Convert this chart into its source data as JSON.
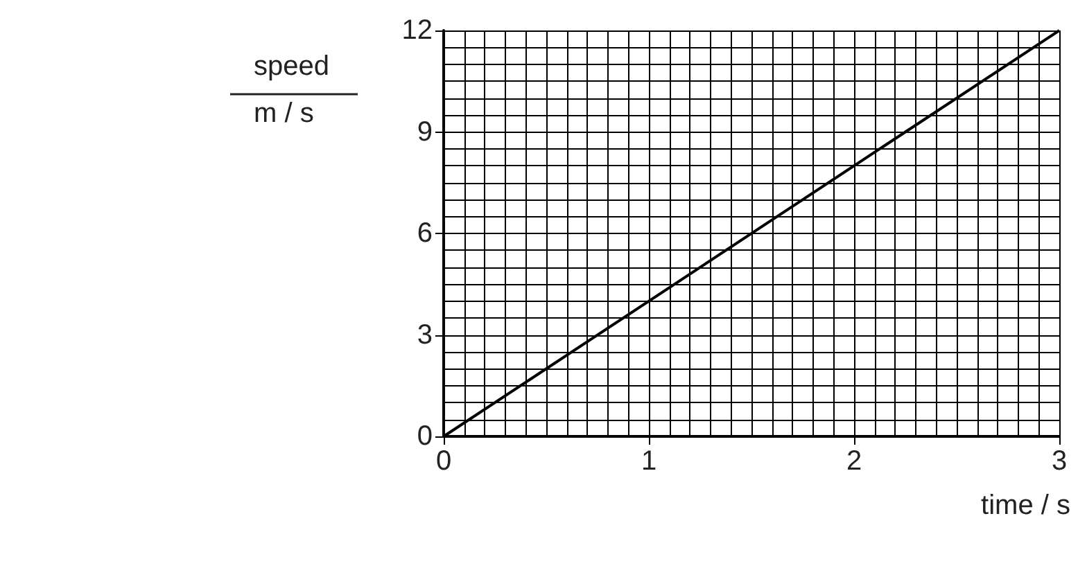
{
  "chart_data": {
    "type": "line",
    "xlabel": "time / s",
    "ylabel": "speed\nm / s",
    "x": [
      0,
      3
    ],
    "series": [
      {
        "color": "#000000",
        "values": [
          0,
          12
        ]
      }
    ],
    "xlim": [
      0,
      3
    ],
    "xticks": [
      0,
      1,
      2,
      3
    ],
    "ylim": [
      0,
      12
    ],
    "yticks": [
      0,
      3,
      6,
      9,
      12
    ],
    "grid": true,
    "marker": "none",
    "line_style": "solid"
  }
}
